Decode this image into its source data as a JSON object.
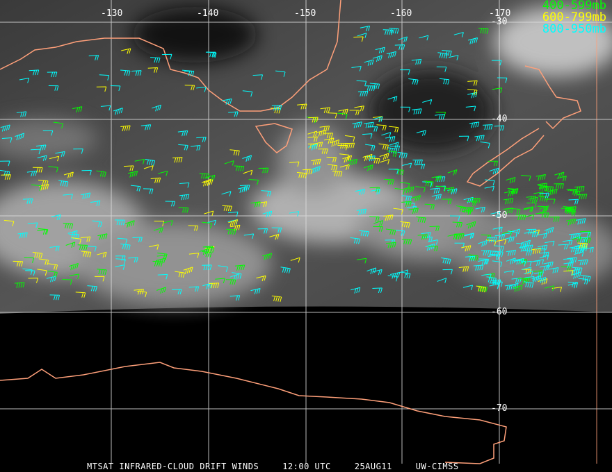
{
  "image": "MTSAT infrared satellite image with cloud drift wind barbs",
  "legend": [
    {
      "label": "400-599mb",
      "color": "#00ff00"
    },
    {
      "label": "600-799mb",
      "color": "#ffff00"
    },
    {
      "label": "800-950mb",
      "color": "#00ffff"
    }
  ],
  "longitude_labels": [
    "-130",
    "-140",
    "-150",
    "-160",
    "-170"
  ],
  "latitude_labels": [
    "-30",
    "-40",
    "-50",
    "-60",
    "-70"
  ],
  "caption": {
    "product": "MTSAT INFRARED-CLOUD DRIFT WINDS",
    "time": "12:00 UTC",
    "date": "25AUG11",
    "source": "UW-CIMSS"
  },
  "colors": {
    "coastline": "#ffa07a",
    "grid": "#dddddd",
    "background": "#000000"
  }
}
